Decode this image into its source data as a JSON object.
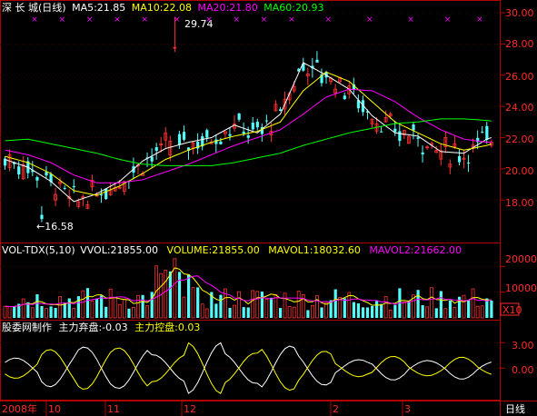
{
  "header": {
    "stock": "深 长 城(日线)",
    "ma5": "MA5:21.85",
    "ma10": "MA10:22.08",
    "ma20": "MA20:21.80",
    "ma60": "MA60:20.93",
    "marker": "×"
  },
  "price_axis": {
    "ticks": [
      "30.00",
      "28.00",
      "26.00",
      "24.00",
      "22.00",
      "20.00",
      "18.00"
    ],
    "max_label": "29.74",
    "min_label": "←16.58"
  },
  "volume_panel": {
    "title": "VOL-TDX(5,10)",
    "vvol": "VVOL:21855.00",
    "volume": "VOLUME:21855.00",
    "mavol1": "MAVOL1:18032.60",
    "mavol2": "MAVOL2:21662.00",
    "ticks": [
      "20000",
      "10000"
    ],
    "unit": "X10"
  },
  "indicator_panel": {
    "title": "股委网制作",
    "main_out": "主力弃盘:-0.03",
    "main_in": "主力控盘:0.03",
    "ticks": [
      "3.00",
      "0.00"
    ]
  },
  "time_axis": {
    "labels": [
      "2008年",
      "10",
      "11",
      "12",
      "2",
      "3"
    ],
    "period": "日线"
  },
  "colors": {
    "up": "#ff3232",
    "down": "#54fcfc",
    "ma5": "#ffffff",
    "ma10": "#ffff00",
    "ma20": "#ff00ff",
    "ma60": "#00ff00",
    "grid": "#b00000"
  },
  "chart_data": [
    {
      "type": "line",
      "name": "price-candlestick",
      "y_range": [
        16.5,
        30.0
      ],
      "x_count": 107,
      "series": [
        {
          "name": "MA5",
          "values_every_5": [
            20.6,
            20.1,
            19.2,
            17.9,
            18.4,
            19.2,
            20.5,
            21.3,
            21.7,
            22.0,
            22.8,
            22.3,
            23.5,
            26.8,
            26.0,
            25.1,
            23.4,
            22.3,
            22.1,
            21.1,
            21.0,
            21.9,
            22.4,
            20.6,
            19.6,
            19.0,
            18.9,
            19.6,
            20.5,
            21.4,
            22.0,
            22.3
          ]
        },
        {
          "name": "MA10",
          "values_every_5": [
            20.8,
            20.4,
            19.7,
            18.6,
            18.3,
            18.9,
            19.7,
            20.6,
            21.2,
            21.7,
            22.1,
            22.4,
            23.0,
            25.0,
            26.2,
            25.6,
            24.3,
            23.0,
            22.3,
            21.6,
            21.2,
            21.5,
            22.0,
            21.2,
            20.2,
            19.4,
            19.1,
            19.3,
            19.9,
            20.8,
            21.5,
            22.1
          ]
        },
        {
          "name": "MA20",
          "values_every_5": [
            21.2,
            20.9,
            20.4,
            19.6,
            19.1,
            19.1,
            19.3,
            19.8,
            20.3,
            20.9,
            21.5,
            22.0,
            22.5,
            23.5,
            24.6,
            25.1,
            25.0,
            24.3,
            23.3,
            22.5,
            21.9,
            21.7,
            21.8,
            21.4,
            20.9,
            20.2,
            19.7,
            19.5,
            19.6,
            20.1,
            20.7,
            21.5
          ]
        },
        {
          "name": "MA60",
          "values_every_5": [
            21.8,
            21.9,
            21.6,
            21.3,
            21.0,
            20.6,
            20.3,
            20.2,
            20.2,
            20.2,
            20.4,
            20.7,
            21.0,
            21.5,
            21.9,
            22.3,
            22.6,
            22.9,
            23.0,
            23.2,
            23.2,
            23.1,
            22.9,
            22.6,
            22.2,
            21.7,
            21.3,
            21.0,
            20.9,
            20.9,
            20.9,
            20.9
          ]
        }
      ]
    },
    {
      "type": "bar",
      "name": "volume",
      "y_range": [
        0,
        24000
      ]
    },
    {
      "type": "line",
      "name": "main-force-indicator",
      "y_range": [
        -3.5,
        4.0
      ]
    }
  ]
}
